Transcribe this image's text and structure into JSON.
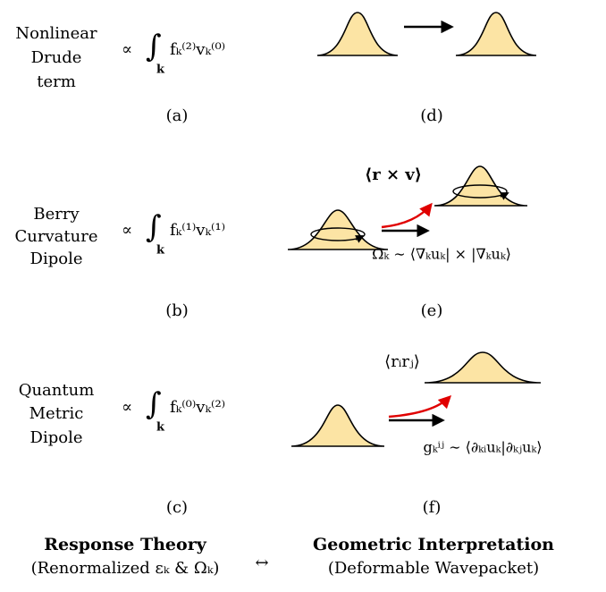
{
  "rows": [
    {
      "label": [
        "Nonlinear",
        "Drude",
        "term"
      ],
      "formula": {
        "prefix": "∝",
        "integral": "∫",
        "integral_sub": "k",
        "body": "fₖ⁽²⁾vₖ⁽⁰⁾"
      },
      "left_tag": "(a)",
      "right_tag": "(d)"
    },
    {
      "label": [
        "Berry",
        "Curvature",
        "Dipole"
      ],
      "formula": {
        "prefix": "∝",
        "integral": "∫",
        "integral_sub": "k",
        "body": "fₖ⁽¹⁾vₖ⁽¹⁾"
      },
      "left_tag": "(b)",
      "right_tag": "(e)",
      "annotation_top": "⟨r × v⟩",
      "annotation_bottom": "Ωₖ ∼ ⟨∇ₖuₖ| × |∇ₖuₖ⟩"
    },
    {
      "label": [
        "Quantum",
        "Metric",
        "Dipole"
      ],
      "formula": {
        "prefix": "∝",
        "integral": "∫",
        "integral_sub": "k",
        "body": "fₖ⁽⁰⁾vₖ⁽²⁾"
      },
      "left_tag": "(c)",
      "right_tag": "(f)",
      "annotation_top": "⟨rᵢrⱼ⟩",
      "annotation_bottom": "gₖⁱʲ ∼ ⟨∂ₖᵢuₖ|∂ₖⱼuₖ⟩"
    }
  ],
  "footer": {
    "left_title": "Response Theory",
    "left_subtitle": "(Renormalized εₖ & Ωₖ)",
    "connector": "↔",
    "right_title": "Geometric Interpretation",
    "right_subtitle": "(Deformable Wavepacket)"
  }
}
